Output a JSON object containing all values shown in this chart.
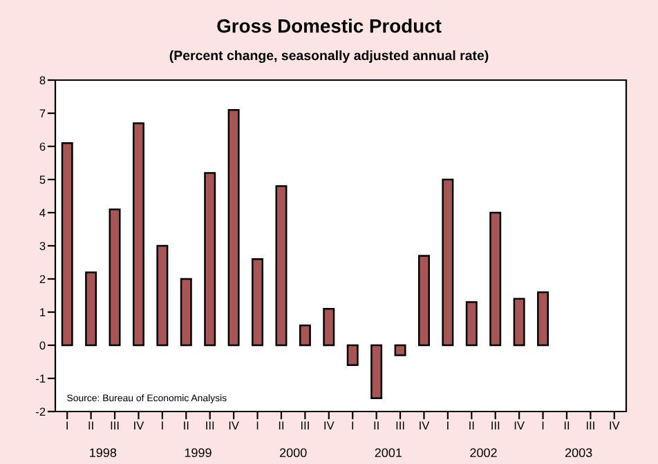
{
  "chart_data": {
    "type": "bar",
    "title": "Gross Domestic Product",
    "subtitle": "(Percent change, seasonally adjusted annual rate)",
    "categories": [
      "I",
      "II",
      "III",
      "IV",
      "I",
      "II",
      "III",
      "IV",
      "I",
      "II",
      "III",
      "IV",
      "I",
      "II",
      "III",
      "IV",
      "I",
      "II",
      "III",
      "IV",
      "I",
      "II",
      "III",
      "IV"
    ],
    "values": [
      6.1,
      2.2,
      4.1,
      6.7,
      3.0,
      2.0,
      5.2,
      7.1,
      2.6,
      4.8,
      0.6,
      1.1,
      -0.6,
      -1.6,
      -0.3,
      2.7,
      5.0,
      1.3,
      4.0,
      1.4,
      1.6,
      null,
      null,
      null
    ],
    "color": "#a85555",
    "ylim": [
      -2,
      8
    ],
    "yticks": [
      -2,
      -1,
      0,
      1,
      2,
      3,
      4,
      5,
      6,
      7,
      8
    ],
    "grid": false,
    "legend": false,
    "annotations": [
      "Source: Bureau of Economic Analysis",
      "1998",
      "1999",
      "2000",
      "2001",
      "2002",
      "2003"
    ]
  }
}
